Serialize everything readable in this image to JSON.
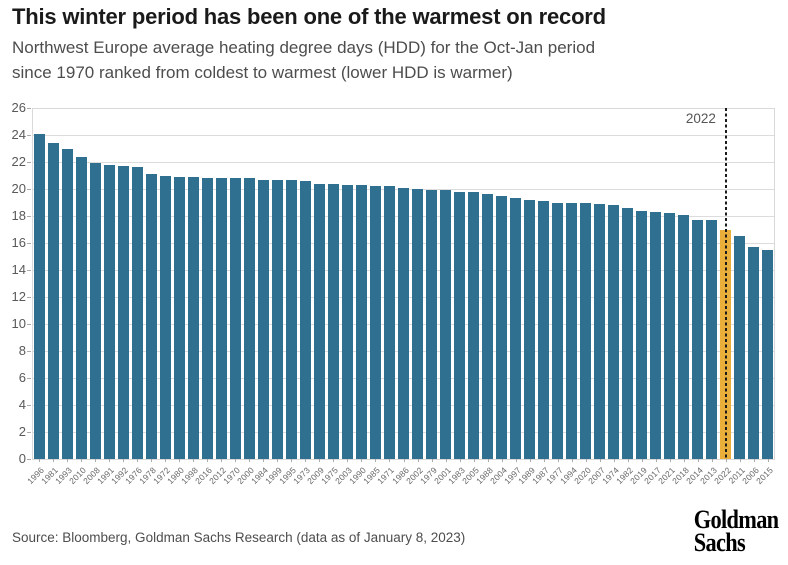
{
  "header": {
    "title": "This winter period has been one of the warmest on record",
    "subtitle": "Northwest Europe average heating degree days (HDD) for the Oct-Jan period\nsince 1970 ranked from coldest to warmest (lower HDD is warmer)"
  },
  "chart_data": {
    "type": "bar",
    "title": "This winter period has been one of the warmest on record",
    "subtitle": "Northwest Europe average heating degree days (HDD) for the Oct-Jan period since 1970 ranked from coldest to warmest (lower HDD is warmer)",
    "xlabel": "",
    "ylabel": "",
    "ylim": [
      0,
      26
    ],
    "yticks": [
      0,
      2,
      4,
      6,
      8,
      10,
      12,
      14,
      16,
      18,
      20,
      22,
      24,
      26
    ],
    "grid": "horizontal",
    "legend": "none",
    "categories": [
      "1996",
      "1981",
      "1993",
      "2010",
      "2008",
      "1991",
      "1992",
      "1976",
      "1978",
      "1972",
      "1980",
      "1998",
      "2016",
      "2012",
      "1970",
      "2000",
      "1984",
      "1999",
      "1995",
      "1973",
      "2009",
      "1975",
      "2003",
      "1990",
      "1985",
      "1971",
      "1986",
      "2002",
      "1979",
      "2001",
      "1983",
      "2005",
      "1988",
      "2004",
      "1997",
      "1989",
      "1987",
      "1977",
      "1994",
      "2020",
      "2007",
      "1974",
      "1982",
      "2019",
      "2017",
      "2021",
      "2018",
      "2014",
      "2013",
      "2022",
      "2011",
      "2006",
      "2015"
    ],
    "values": [
      24.1,
      23.4,
      23.0,
      22.4,
      21.9,
      21.8,
      21.7,
      21.6,
      21.1,
      21.0,
      20.9,
      20.9,
      20.8,
      20.8,
      20.8,
      20.8,
      20.7,
      20.7,
      20.7,
      20.6,
      20.4,
      20.4,
      20.3,
      20.3,
      20.2,
      20.2,
      20.1,
      20.0,
      19.9,
      19.9,
      19.8,
      19.8,
      19.6,
      19.5,
      19.3,
      19.2,
      19.1,
      19.0,
      19.0,
      19.0,
      18.9,
      18.8,
      18.6,
      18.4,
      18.3,
      18.2,
      18.1,
      17.7,
      17.7,
      17.0,
      16.5,
      15.7,
      15.5
    ],
    "bar_color": "#2F6F90",
    "highlight_category": "2022",
    "highlight_color": "#EAAF3B",
    "annotation": {
      "label": "2022",
      "line_style": "dotted",
      "line_color": "#1a1a1a"
    }
  },
  "footer": {
    "source": "Source: Bloomberg, Goldman Sachs Research (data as of January 8, 2023)",
    "logo_line1": "Goldman",
    "logo_line2": "Sachs"
  }
}
